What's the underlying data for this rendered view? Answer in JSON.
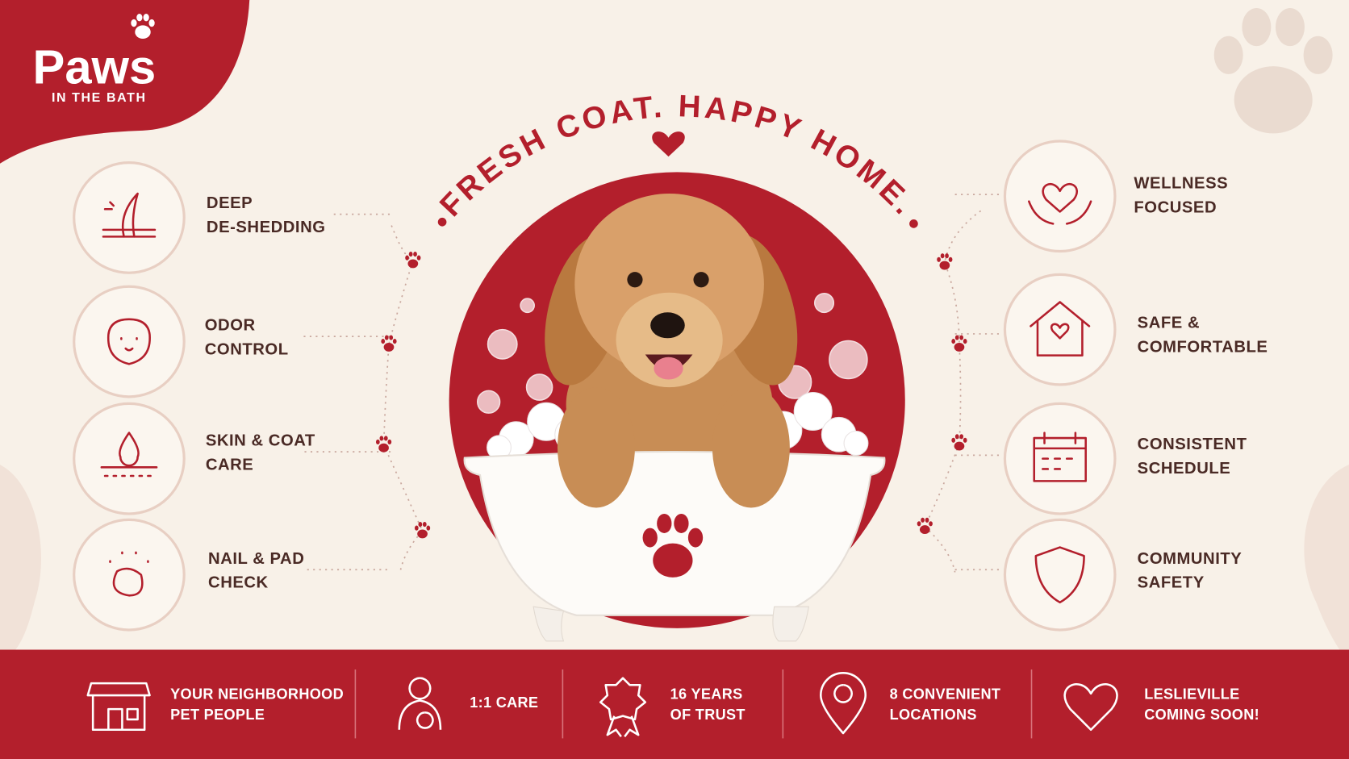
{
  "logo": {
    "name": "Paws",
    "tagline": "IN THE BATH"
  },
  "headline": "FRESH COAT. HAPPY HOME.",
  "features_left": [
    {
      "lines": [
        "DEEP",
        "DE-SHEDDING"
      ]
    },
    {
      "lines": [
        "ODOR",
        "CONTROL"
      ]
    },
    {
      "lines": [
        "SKIN & COAT",
        "CARE"
      ]
    },
    {
      "lines": [
        "NAIL & PAD",
        "CHECK"
      ]
    }
  ],
  "features_right": [
    {
      "lines": [
        "WELLNESS",
        "FOCUSED"
      ]
    },
    {
      "lines": [
        "SAFE &",
        "COMFORTABLE"
      ]
    },
    {
      "lines": [
        "CONSISTENT",
        "SCHEDULE"
      ]
    },
    {
      "lines": [
        "COMMUNITY",
        "SAFETY"
      ]
    }
  ],
  "footer": [
    {
      "lines": [
        "YOUR NEIGHBORHOOD",
        "PET PEOPLE"
      ]
    },
    {
      "lines": [
        "1:1 CARE"
      ]
    },
    {
      "lines": [
        "16 YEARS",
        "OF TRUST"
      ]
    },
    {
      "lines": [
        "8 CONVENIENT",
        "LOCATIONS"
      ]
    },
    {
      "lines": [
        "LESLIEVILLE",
        "COMING SOON!"
      ]
    }
  ]
}
